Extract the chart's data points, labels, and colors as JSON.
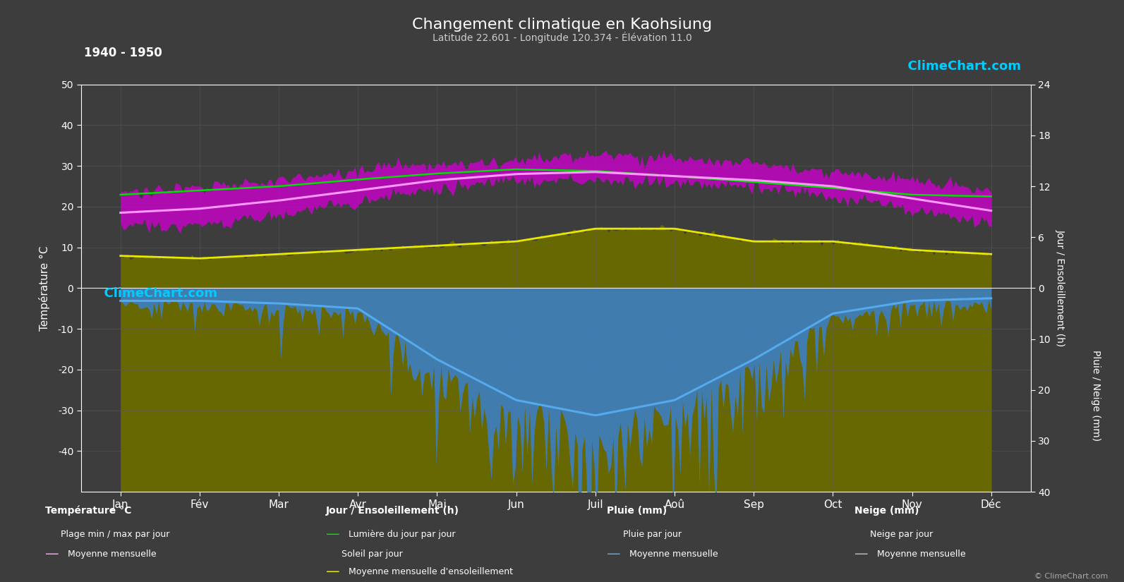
{
  "title": "Changement climatique en Kaohsiung",
  "subtitle": "Latitude 22.601 - Longitude 120.374 - Élévation 11.0",
  "period": "1940 - 1950",
  "background_color": "#3d3d3d",
  "plot_bg_color": "#3d3d3d",
  "grid_color": "#585858",
  "months": [
    "Jan",
    "Fév",
    "Mar",
    "Avr",
    "Mai",
    "Jun",
    "Juil",
    "Aoû",
    "Sep",
    "Oct",
    "Nov",
    "Déc"
  ],
  "temp_ylim": [
    -50,
    50
  ],
  "temp_min_monthly": [
    15.0,
    15.5,
    18.0,
    21.0,
    24.5,
    26.5,
    26.5,
    26.0,
    25.0,
    22.5,
    19.5,
    16.0
  ],
  "temp_max_monthly": [
    23.5,
    24.5,
    26.5,
    29.0,
    30.5,
    31.5,
    32.5,
    32.0,
    30.5,
    28.5,
    26.5,
    24.0
  ],
  "temp_mean_monthly": [
    18.5,
    19.5,
    21.5,
    24.0,
    26.5,
    28.0,
    28.5,
    27.5,
    26.5,
    25.0,
    22.0,
    19.0
  ],
  "sunshine_monthly": [
    3.8,
    3.5,
    4.0,
    4.5,
    5.0,
    5.5,
    7.0,
    7.0,
    5.5,
    5.5,
    4.5,
    4.0
  ],
  "daylight_monthly": [
    11.0,
    11.5,
    12.0,
    12.8,
    13.5,
    14.0,
    13.8,
    13.2,
    12.5,
    11.8,
    11.0,
    10.8
  ],
  "rain_monthly_mean": [
    2.5,
    2.5,
    3.0,
    4.0,
    14.0,
    22.0,
    25.0,
    22.0,
    14.0,
    5.0,
    2.5,
    2.0
  ],
  "sun_scale": 2.083,
  "rain_scale": 1.25,
  "colors": {
    "temp_fill": "#cc00cc",
    "sunshine_fill": "#6b6b00",
    "daylight_line": "#00e000",
    "sunshine_line": "#e8e800",
    "temp_mean_line": "#ff99ff",
    "rain_fill": "#3a80cc",
    "rain_mean_line": "#55aaee",
    "snow_fill": "#999999",
    "snow_mean_line": "#bbbbbb",
    "zero_line": "#aaaaaa"
  }
}
